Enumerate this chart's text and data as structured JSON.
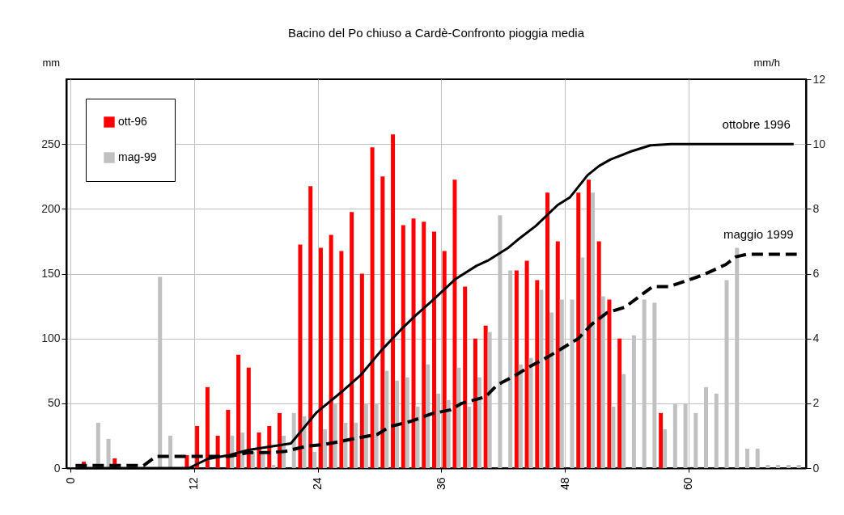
{
  "chart_data": {
    "type": "bar",
    "title": "Bacino del Po chiuso a Cardè-Confronto pioggia media",
    "ylabel": "mm",
    "y2label": "mm/h",
    "x": [
      0.5,
      1.5,
      2.5,
      3.5,
      4.5,
      5.5,
      6.5,
      7.5,
      8.5,
      9.5,
      10.5,
      11.5,
      12.5,
      13.5,
      14.5,
      15.5,
      16.5,
      17.5,
      18.5,
      19.5,
      20.5,
      21.5,
      22.5,
      23.5,
      24.5,
      25.5,
      26.5,
      27.5,
      28.5,
      29.5,
      30.5,
      31.5,
      32.5,
      33.5,
      34.5,
      35.5,
      36.5,
      37.5,
      38.5,
      39.5,
      40.5,
      41.5,
      42.5,
      43.5,
      44.5,
      45.5,
      46.5,
      47.5,
      48.5,
      49.5,
      50.5,
      51.5,
      52.5,
      53.5,
      54.5,
      55.5,
      56.5,
      57.5,
      58.5,
      59.5,
      60.5,
      61.5,
      62.5,
      63.5,
      64.5,
      65.5,
      66.5,
      67.5,
      68.5,
      69.5,
      70.5
    ],
    "series": [
      {
        "name": "ott-96",
        "color": "#ff0000",
        "axis": "y2",
        "values": [
          0,
          0.2,
          null,
          null,
          0.3,
          0,
          0,
          0,
          null,
          null,
          0,
          0.4,
          1.3,
          2.5,
          1.0,
          1.8,
          3.5,
          3.1,
          1.1,
          1.3,
          1.7,
          null,
          6.9,
          8.7,
          6.8,
          7.2,
          6.7,
          7.9,
          6.0,
          9.9,
          9.0,
          10.3,
          7.5,
          7.7,
          7.6,
          7.3,
          6.7,
          8.9,
          5.6,
          4.0,
          4.4,
          null,
          null,
          6.1,
          6.4,
          5.8,
          8.5,
          7.0,
          null,
          8.5,
          8.9,
          7.0,
          5.2,
          4.0,
          null,
          null,
          null,
          1.7,
          null,
          0,
          0,
          0,
          0,
          0,
          0,
          0,
          0,
          0,
          0,
          0,
          0
        ]
      },
      {
        "name": "mag-99",
        "color": "#c0c0c0",
        "axis": "y2",
        "values": [
          0,
          0,
          1.4,
          0.9,
          0,
          0,
          0,
          0,
          5.9,
          1.0,
          0,
          0,
          0,
          0,
          0,
          1.0,
          1.1,
          0.5,
          0.5,
          0.1,
          1.0,
          1.7,
          1.6,
          0.5,
          1.2,
          2.0,
          1.4,
          1.4,
          2.0,
          2.0,
          3.0,
          2.7,
          2.8,
          1.9,
          3.2,
          2.3,
          2.1,
          3.1,
          1.9,
          2.8,
          4.2,
          7.8,
          6.1,
          3.2,
          3.4,
          5.5,
          4.8,
          5.2,
          5.2,
          6.5,
          8.5,
          5.3,
          1.9,
          2.9,
          4.1,
          5.2,
          5.1,
          1.2,
          2.0,
          2.0,
          1.7,
          2.5,
          2.3,
          5.8,
          6.8,
          0.6,
          0.6,
          0.1,
          0.1,
          0.1,
          0.1
        ]
      },
      {
        "name": "ottobre 1996",
        "type": "line",
        "color": "#000000",
        "line_style": "solid",
        "x": [
          0.5,
          11.5,
          13.3,
          15.4,
          17.3,
          21.4,
          23.9,
          26.2,
          28.2,
          30.2,
          32.1,
          33.4,
          35.1,
          37.4,
          39.4,
          40.5,
          42.5,
          43.4,
          45.2,
          47.3,
          48.5,
          50.2,
          51.3,
          52.4,
          54.3,
          56.3,
          58.3,
          70.2
        ],
        "values": [
          0,
          0,
          7,
          10,
          14,
          19,
          43,
          58,
          72,
          91,
          107,
          117,
          129,
          146,
          156,
          160,
          170,
          176,
          187,
          203,
          209,
          226,
          233,
          238,
          244,
          249,
          250,
          250
        ]
      },
      {
        "name": "maggio 1999",
        "type": "line",
        "color": "#000000",
        "line_style": "dashed",
        "x": [
          0.5,
          7.1,
          8.3,
          15.4,
          17.3,
          19.5,
          20.9,
          23,
          24.5,
          26.5,
          27.7,
          29.8,
          31,
          33,
          35.1,
          36.9,
          38,
          40.3,
          41.4,
          43.3,
          44.5,
          46.4,
          49.3,
          50.6,
          52.1,
          53.8,
          56.5,
          58.1,
          59.6,
          61.4,
          63.6,
          64.6,
          65.7,
          70.5
        ],
        "values": [
          2,
          2,
          9,
          9,
          12,
          12,
          13,
          17,
          18,
          21,
          23,
          26,
          32,
          36,
          42,
          45,
          50,
          55,
          64,
          72,
          78,
          86,
          100,
          111,
          120,
          124,
          140,
          140,
          144,
          149,
          157,
          163,
          165,
          165
        ]
      }
    ],
    "xlim": [
      0,
      71
    ],
    "xticks": [
      0,
      12,
      24,
      36,
      48,
      60
    ],
    "ylim": [
      0,
      300
    ],
    "yticks": [
      0,
      50,
      100,
      150,
      200,
      250
    ],
    "y2lim": [
      0,
      12
    ],
    "y2ticks": [
      0,
      2,
      4,
      6,
      8,
      10,
      12
    ],
    "grid": true,
    "legend": "top left"
  }
}
